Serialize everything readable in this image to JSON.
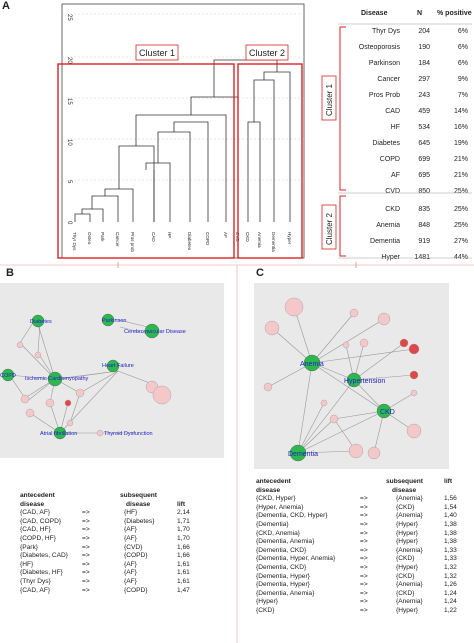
{
  "panels": {
    "a": "A",
    "b": "B",
    "c": "C"
  },
  "dendrogram": {
    "y_ticks": [
      "0",
      "5",
      "10",
      "15",
      "20",
      "25"
    ],
    "leaves": [
      "Thyr Dys",
      "Osteo",
      "Park",
      "Cancer",
      "Pros prob",
      "CAD",
      "HF",
      "Diabetes",
      "COPD",
      "AF",
      "CVD",
      "CKD",
      "Anemia",
      "Dementia",
      "Hyper"
    ],
    "cluster1_label": "Cluster 1",
    "cluster2_label": "Cluster 2"
  },
  "disease_table": {
    "headers": {
      "disease": "Disease",
      "n": "N",
      "pct": "% positive"
    },
    "rows": [
      {
        "disease": "Thyr Dys",
        "n": "204",
        "pct": "6%"
      },
      {
        "disease": "Osteoporosis",
        "n": "190",
        "pct": "6%"
      },
      {
        "disease": "Parkinson",
        "n": "184",
        "pct": "6%"
      },
      {
        "disease": "Cancer",
        "n": "297",
        "pct": "9%"
      },
      {
        "disease": "Pros Prob",
        "n": "243",
        "pct": "7%"
      },
      {
        "disease": "CAD",
        "n": "459",
        "pct": "14%"
      },
      {
        "disease": "HF",
        "n": "534",
        "pct": "16%"
      },
      {
        "disease": "Diabetes",
        "n": "645",
        "pct": "19%"
      },
      {
        "disease": "COPD",
        "n": "699",
        "pct": "21%"
      },
      {
        "disease": "AF",
        "n": "695",
        "pct": "21%"
      },
      {
        "disease": "CVD",
        "n": "850",
        "pct": "25%"
      },
      {
        "disease": "CKD",
        "n": "835",
        "pct": "25%"
      },
      {
        "disease": "Anemia",
        "n": "848",
        "pct": "25%"
      },
      {
        "disease": "Dementia",
        "n": "919",
        "pct": "27%"
      },
      {
        "disease": "Hyper",
        "n": "1481",
        "pct": "44%"
      }
    ],
    "cluster1_label": "Cluster 1",
    "cluster2_label": "Cluster 2"
  },
  "network_b": {
    "labels": {
      "parkinson": "Parkinson",
      "diabetes": "Diabetes",
      "cvd": "Cerebrovascular Disease",
      "ihd": "Ischemic Cardiomyopathy",
      "hf": "Heart Failure",
      "copd": "COPD",
      "af": "Atrial fibrillation",
      "thyroid": "Thyroid Dysfunction"
    }
  },
  "network_c": {
    "labels": {
      "anemia": "Anemia",
      "hyper": "Hypertension",
      "ckd": "CKD",
      "dementia": "Dementia"
    }
  },
  "rules_b": {
    "headers": {
      "ante1": "antecedent",
      "ante2": "disease",
      "subs1": "subsequent",
      "subs2": "disease",
      "lift": "lift"
    },
    "rows": [
      {
        "ante": "{CAD, AF}",
        "arrow": "=>",
        "subs": "{HF}",
        "lift": "2,14"
      },
      {
        "ante": "{CAD, COPD}",
        "arrow": "=>",
        "subs": "{Diabetes}",
        "lift": "1,71"
      },
      {
        "ante": "{CAD, HF}",
        "arrow": "=>",
        "subs": "{AF}",
        "lift": "1,70"
      },
      {
        "ante": "{COPD, HF}",
        "arrow": "=>",
        "subs": "{AF}",
        "lift": "1,70"
      },
      {
        "ante": "{Park}",
        "arrow": "=>",
        "subs": "{CVD}",
        "lift": "1,66"
      },
      {
        "ante": "{Diabetes, CAD}",
        "arrow": "=>",
        "subs": "{COPD}",
        "lift": "1,66"
      },
      {
        "ante": "{HF}",
        "arrow": "=>",
        "subs": "{AF}",
        "lift": "1,61"
      },
      {
        "ante": "{Diabetes, HF}",
        "arrow": "=>",
        "subs": "{AF}",
        "lift": "1,61"
      },
      {
        "ante": "{Thyr Dys}",
        "arrow": "=>",
        "subs": "{AF}",
        "lift": "1,61"
      },
      {
        "ante": "{CAD, AF}",
        "arrow": "=>",
        "subs": "{COPD}",
        "lift": "1,47"
      }
    ]
  },
  "rules_c": {
    "headers": {
      "ante1": "antecedent",
      "ante2": "disease",
      "subs1": "subsequent",
      "subs2": "disease",
      "lift": "lift"
    },
    "rows": [
      {
        "ante": "{CKD, Hyper}",
        "arrow": "=>",
        "subs": "{Anemia}",
        "lift": "1,56"
      },
      {
        "ante": "{Hyper, Anemia}",
        "arrow": "=>",
        "subs": "{CKD}",
        "lift": "1,54"
      },
      {
        "ante": "{Dementia, CKD, Hyper}",
        "arrow": "=>",
        "subs": "{Anemia}",
        "lift": "1,40"
      },
      {
        "ante": "{Dementia}",
        "arrow": "=>",
        "subs": "{Hyper}",
        "lift": "1,38"
      },
      {
        "ante": "{CKD, Anemia}",
        "arrow": "=>",
        "subs": "{Hyper}",
        "lift": "1,38"
      },
      {
        "ante": "{Dementia, Anemia}",
        "arrow": "=>",
        "subs": "{Hyper}",
        "lift": "1,38"
      },
      {
        "ante": "{Dementia, CKD}",
        "arrow": "=>",
        "subs": "{Anemia}",
        "lift": "1,33"
      },
      {
        "ante": "{Dementia, Hyper, Anemia}",
        "arrow": "=>",
        "subs": "{CKD}",
        "lift": "1,33"
      },
      {
        "ante": "{Dementia, CKD}",
        "arrow": "=>",
        "subs": "{Hyper}",
        "lift": "1,32"
      },
      {
        "ante": "{Dementia, Hyper}",
        "arrow": "=>",
        "subs": "{CKD}",
        "lift": "1,32"
      },
      {
        "ante": "{Dementia, Hyper}",
        "arrow": "=>",
        "subs": "{Anemia}",
        "lift": "1,26"
      },
      {
        "ante": "{Dementia, Anemia}",
        "arrow": "=>",
        "subs": "{CKD}",
        "lift": "1,24"
      },
      {
        "ante": "{Hyper}",
        "arrow": "=>",
        "subs": "{Anemia}",
        "lift": "1,24"
      },
      {
        "ante": "{CKD}",
        "arrow": "=>",
        "subs": "{Hyper}",
        "lift": "1,22"
      }
    ]
  }
}
